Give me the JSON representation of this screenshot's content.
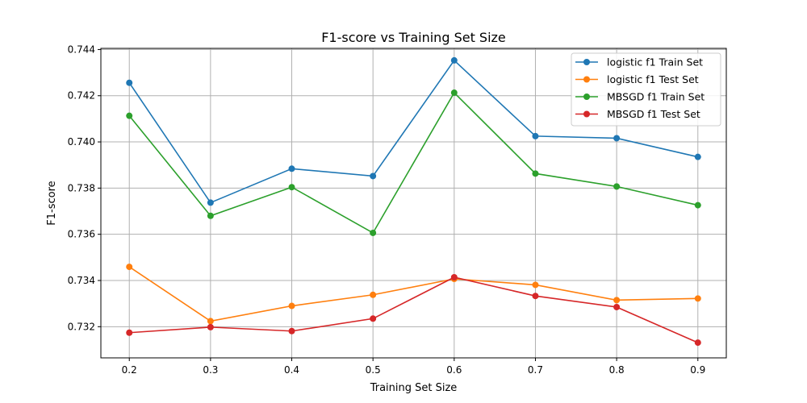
{
  "chart_data": {
    "type": "line",
    "title": "F1-score vs Training Set Size",
    "xlabel": "Training Set Size",
    "ylabel": "F1-score",
    "x": [
      0.2,
      0.3,
      0.4,
      0.5,
      0.6,
      0.7,
      0.8,
      0.9
    ],
    "xlim": [
      0.165,
      0.935
    ],
    "ylim": [
      0.73065,
      0.74405
    ],
    "xticks": [
      "0.2",
      "0.3",
      "0.4",
      "0.5",
      "0.6",
      "0.7",
      "0.8",
      "0.9"
    ],
    "yticks": [
      "0.732",
      "0.734",
      "0.736",
      "0.738",
      "0.740",
      "0.742",
      "0.744"
    ],
    "grid": true,
    "legend_position": "upper right",
    "series": [
      {
        "name": "logistic f1 Train Set",
        "color": "#1f77b4",
        "values": [
          0.74256,
          0.73737,
          0.73884,
          0.73852,
          0.74353,
          0.74025,
          0.74016,
          0.73935
        ]
      },
      {
        "name": "logistic f1 Test Set",
        "color": "#ff7f0e",
        "values": [
          0.73459,
          0.73224,
          0.7329,
          0.73338,
          0.73407,
          0.73381,
          0.73315,
          0.73322
        ]
      },
      {
        "name": "MBSGD f1 Train Set",
        "color": "#2ca02c",
        "values": [
          0.74113,
          0.7368,
          0.73804,
          0.73606,
          0.74213,
          0.73863,
          0.73807,
          0.73726
        ]
      },
      {
        "name": "MBSGD f1 Test Set",
        "color": "#d62728",
        "values": [
          0.73174,
          0.73198,
          0.73181,
          0.73235,
          0.73414,
          0.73333,
          0.73285,
          0.73131
        ]
      }
    ]
  }
}
